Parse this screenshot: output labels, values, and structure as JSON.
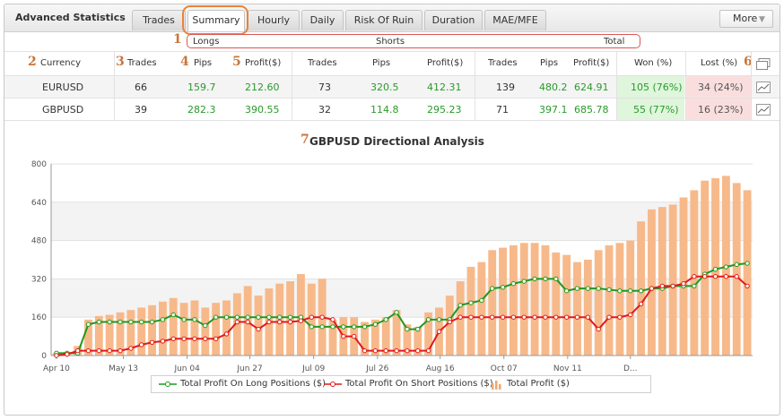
{
  "header": {
    "title": "Advanced Statistics",
    "tabs": [
      {
        "label": "Trades",
        "active": false
      },
      {
        "label": "Summary",
        "active": true
      },
      {
        "label": "Hourly",
        "active": false
      },
      {
        "label": "Daily",
        "active": false
      },
      {
        "label": "Risk Of Ruin",
        "active": false
      },
      {
        "label": "Duration",
        "active": false
      },
      {
        "label": "MAE/MFE",
        "active": false
      }
    ],
    "more_label": "More"
  },
  "annotations": {
    "n1": "1",
    "n2": "2",
    "n3": "3",
    "n4": "4",
    "n5": "5",
    "n6": "6",
    "n7": "7"
  },
  "groups": {
    "longs": "Longs",
    "shorts": "Shorts",
    "total": "Total"
  },
  "columns": {
    "currency": "Currency",
    "long_trades": "Trades",
    "long_pips": "Pips",
    "long_profit": "Profit($)",
    "short_trades": "Trades",
    "short_pips": "Pips",
    "short_profit": "Profit($)",
    "total_trades": "Trades",
    "total_pips": "Pips",
    "total_profit": "Profit($)",
    "won": "Won (%)",
    "lost": "Lost (%)"
  },
  "rows": [
    {
      "currency": "EURUSD",
      "long_trades": "66",
      "long_pips": "159.7",
      "long_profit": "212.60",
      "short_trades": "73",
      "short_pips": "320.5",
      "short_profit": "412.31",
      "total_trades": "139",
      "total_pips": "480.2",
      "total_profit": "624.91",
      "won": "105 (76%)",
      "lost": "34 (24%)"
    },
    {
      "currency": "GBPUSD",
      "long_trades": "39",
      "long_pips": "282.3",
      "long_profit": "390.55",
      "short_trades": "32",
      "short_pips": "114.8",
      "short_profit": "295.23",
      "total_trades": "71",
      "total_pips": "397.1",
      "total_profit": "685.78",
      "won": "55 (77%)",
      "lost": "16 (23%)"
    }
  ],
  "colors": {
    "long_line": "#1e9a1e",
    "short_line": "#e01a1a",
    "bars": "#f7b98a",
    "profit_text": "#2a9a2a"
  },
  "chart_data": {
    "type": "bar",
    "title": "GBPUSD Directional Analysis",
    "ylim": [
      0,
      800
    ],
    "yticks": [
      0,
      160,
      320,
      480,
      640,
      800
    ],
    "x_tick_labels": [
      "Apr 10",
      "May 13",
      "Jun 04",
      "Jun 27",
      "Jul 09",
      "Jul 26",
      "Aug 16",
      "Oct 07",
      "Nov 11",
      "D..."
    ],
    "x_tick_positions": [
      0,
      6.3,
      12.3,
      18.2,
      24.2,
      30.2,
      36.1,
      42.1,
      48.1,
      54
    ],
    "grid": true,
    "legend": "bottom",
    "series": [
      {
        "name": "Total Profit On Long Positions ($)",
        "type": "line",
        "values": [
          10,
          10,
          10,
          130,
          140,
          140,
          140,
          140,
          140,
          140,
          150,
          170,
          150,
          150,
          125,
          160,
          160,
          160,
          160,
          160,
          160,
          160,
          160,
          160,
          120,
          120,
          120,
          120,
          120,
          120,
          130,
          150,
          180,
          110,
          110,
          150,
          150,
          150,
          210,
          220,
          230,
          280,
          285,
          300,
          310,
          320,
          320,
          320,
          270,
          280,
          280,
          280,
          275,
          270,
          270,
          270,
          280,
          280,
          290,
          290,
          290,
          340,
          360,
          370,
          380,
          385
        ]
      },
      {
        "name": "Total Profit On Short Positions ($)",
        "type": "line",
        "values": [
          0,
          5,
          20,
          20,
          20,
          20,
          20,
          30,
          45,
          55,
          60,
          70,
          70,
          70,
          70,
          70,
          90,
          140,
          140,
          110,
          140,
          140,
          140,
          145,
          160,
          160,
          150,
          80,
          80,
          20,
          20,
          20,
          20,
          20,
          20,
          20,
          100,
          140,
          160,
          160,
          160,
          160,
          160,
          160,
          160,
          160,
          160,
          160,
          160,
          160,
          160,
          110,
          160,
          160,
          170,
          215,
          280,
          290,
          290,
          300,
          330,
          330,
          330,
          330,
          330,
          290
        ]
      },
      {
        "name": "Total Profit ($)",
        "type": "bar",
        "values": [
          10,
          15,
          40,
          150,
          165,
          170,
          180,
          190,
          200,
          210,
          225,
          240,
          220,
          230,
          200,
          220,
          230,
          260,
          290,
          250,
          280,
          300,
          310,
          340,
          300,
          320,
          150,
          160,
          160,
          140,
          150,
          160,
          190,
          130,
          120,
          180,
          200,
          250,
          310,
          370,
          390,
          440,
          450,
          460,
          470,
          470,
          460,
          430,
          420,
          390,
          400,
          440,
          460,
          470,
          480,
          560,
          610,
          620,
          630,
          660,
          690,
          730,
          740,
          750,
          720,
          690
        ]
      }
    ]
  },
  "legend": {
    "long_label": "Total Profit On Long Positions ($)",
    "short_label": "Total Profit On Short Positions ($)",
    "total_label": "Total Profit ($)"
  }
}
